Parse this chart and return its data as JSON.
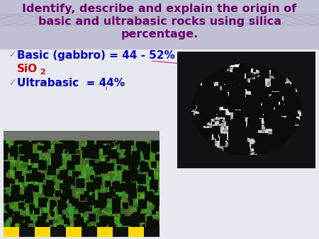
{
  "title_line1": "Identify, describe and explain the origin of",
  "title_line2": "basic and ultrabasic rocks using silica",
  "title_line3": "percentage.",
  "title_color": "#6B006B",
  "title_fontsize": 11.5,
  "bullet_blue_color": "#0000BB",
  "bullet_red_color": "#CC0000",
  "bullet_fontsize": 11,
  "bg_color": "#DCDCE8",
  "bg_top_color": "#C0C0D4",
  "bg_main_color": "#E8E8F0",
  "fig_width": 4.5,
  "fig_height": 3.38,
  "dpi": 100,
  "arrow_color": "#CC4488",
  "checkmark_color": "#888888"
}
